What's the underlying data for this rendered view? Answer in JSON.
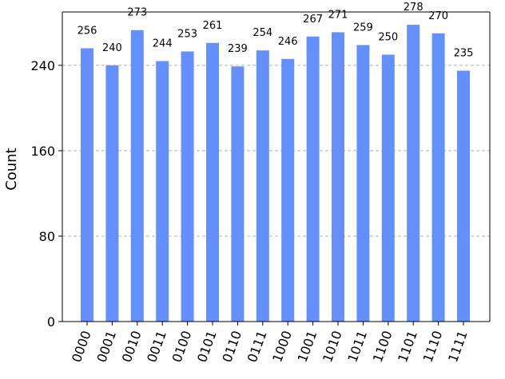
{
  "chart_data": {
    "type": "bar",
    "title": "",
    "xlabel": "",
    "ylabel": "Count",
    "ylim": [
      0,
      290
    ],
    "yticks": [
      0,
      80,
      160,
      240
    ],
    "grid": "horizontal dashed",
    "bar_color": "#648fff",
    "categories": [
      "0000",
      "0001",
      "0010",
      "0011",
      "0100",
      "0101",
      "0110",
      "0111",
      "1000",
      "1001",
      "1010",
      "1011",
      "1100",
      "1101",
      "1110",
      "1111"
    ],
    "values": [
      256,
      240,
      273,
      244,
      253,
      261,
      239,
      254,
      246,
      267,
      271,
      259,
      250,
      278,
      270,
      235
    ],
    "value_labels": [
      "256",
      "240",
      "273",
      "244",
      "253",
      "261",
      "239",
      "254",
      "246",
      "267",
      "271",
      "259",
      "250",
      "278",
      "270",
      "235"
    ]
  }
}
